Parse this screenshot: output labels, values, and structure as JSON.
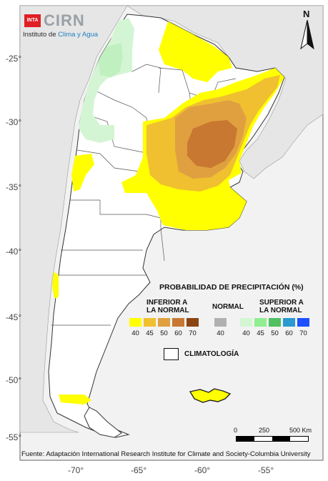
{
  "logo": {
    "agency": "INTA",
    "name": "CIRN",
    "subtitle_prefix": "Instituto de ",
    "subtitle_accent": "Clima y Agua"
  },
  "north_label": "N",
  "latitude_labels": [
    "-25°",
    "-30°",
    "-35°",
    "-40°",
    "-45°",
    "-50°",
    "-55°"
  ],
  "longitude_labels": [
    "-70°",
    "-65°",
    "-60°",
    "-55°"
  ],
  "legend": {
    "title": "PROBABILIDAD DE PRECIPITACIÓN (%)",
    "below": {
      "label_line1": "INFERIOR A",
      "label_line2": "LA NORMAL",
      "values": [
        "40",
        "45",
        "50",
        "60",
        "70"
      ],
      "colors": [
        "#ffff00",
        "#f0c030",
        "#e0a040",
        "#c87830",
        "#8b4513"
      ]
    },
    "normal": {
      "label": "NORMAL",
      "value": "40",
      "color": "#b0b0b0"
    },
    "above": {
      "label_line1": "SUPERIOR A",
      "label_line2": "LA NORMAL",
      "values": [
        "40",
        "45",
        "50",
        "60",
        "70"
      ],
      "colors": [
        "#d4f5d4",
        "#90ee90",
        "#50c060",
        "#2a9ad0",
        "#1e50ff"
      ]
    },
    "climatology_label": "CLIMATOLOGÍA"
  },
  "scale": {
    "labels": [
      "0",
      "250",
      "500 Km"
    ]
  },
  "source": "Fuente: Adaptación International Research Institute for Climate and Society-Columbia University",
  "colors": {
    "ocean": "#f2f2f2",
    "neighbor_land": "#e6e6e6",
    "argentina": "#ffffff",
    "border": "#555555"
  }
}
